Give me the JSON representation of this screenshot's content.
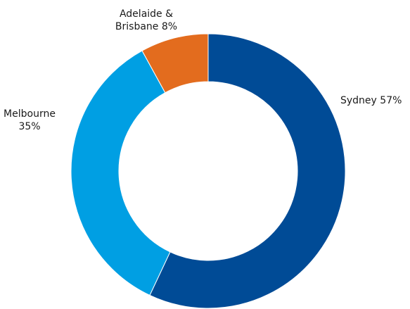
{
  "chart_data": {
    "type": "pie",
    "variant": "donut",
    "title": "",
    "slices": [
      {
        "label_lines": [
          "Sydney 57%"
        ],
        "value": 57,
        "color": "#004b96"
      },
      {
        "label_lines": [
          "Melbourne",
          "35%"
        ],
        "value": 35,
        "color": "#009fe3"
      },
      {
        "label_lines": [
          "Adelaide &",
          "Brisbane 8%"
        ],
        "value": 8,
        "color": "#e36c1e"
      }
    ],
    "start_angle": "12 o'clock",
    "direction": "clockwise"
  }
}
